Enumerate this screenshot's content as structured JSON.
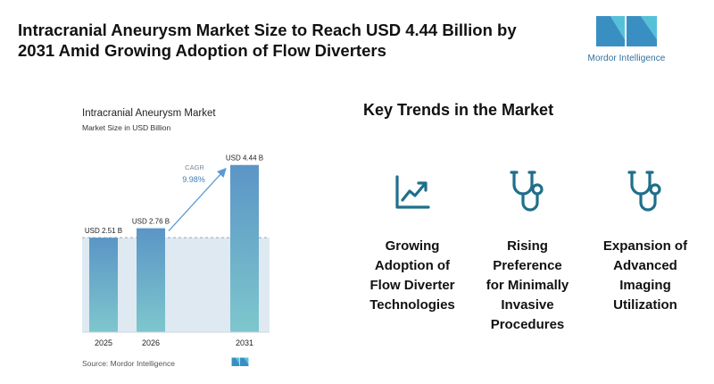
{
  "headline": "Intracranial Aneurysm Market Size to Reach USD 4.44 Billion by 2031 Amid Growing Adoption of Flow Diverters",
  "logo": {
    "text": "Mordor Intelligence",
    "icon": "mordor-intelligence-logo"
  },
  "chart_data": {
    "type": "bar",
    "title": "Intracranial Aneurysm Market",
    "subtitle": "Market Size in USD Billion",
    "categories": [
      "2025",
      "2026",
      "2031"
    ],
    "values": [
      2.51,
      2.76,
      4.44
    ],
    "value_labels": [
      "USD 2.51 B",
      "USD 2.76 B",
      "USD 4.44 B"
    ],
    "ylim": [
      0,
      4.6
    ],
    "annotation": {
      "label": "CAGR",
      "value": "9.98%"
    },
    "reference_value": 2.51,
    "grid": false,
    "colors": {
      "bar_top": "#5b95c6",
      "bar_bottom": "#7ec7cd",
      "shade": "#dfe9f2",
      "arrow": "#5b9bd2"
    }
  },
  "source": "Source: Mordor Intelligence",
  "trends": {
    "title": "Key Trends in the Market",
    "items": [
      {
        "icon": "trend-up-chart-icon",
        "label": [
          "Growing",
          "Adoption of",
          "Flow Diverter",
          "Technologies"
        ]
      },
      {
        "icon": "stethoscope-icon",
        "label": [
          "Rising",
          "Preference",
          "for Minimally",
          "Invasive",
          "Procedures"
        ]
      },
      {
        "icon": "stethoscope-icon",
        "label": [
          "Expansion of",
          "Advanced",
          "Imaging",
          "Utilization"
        ]
      }
    ],
    "icon_color": "#1f6f8b"
  }
}
